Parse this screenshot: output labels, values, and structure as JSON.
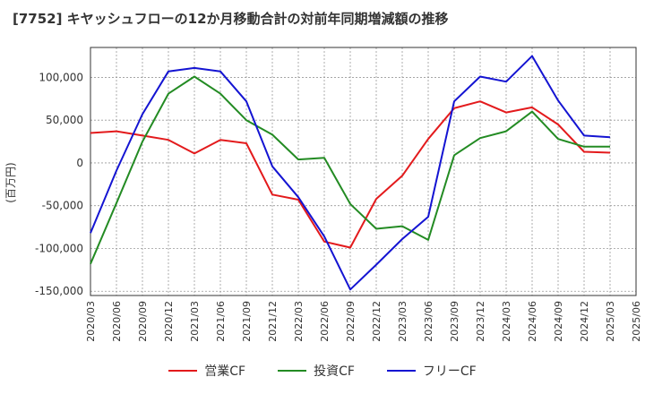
{
  "chart_data": {
    "type": "line",
    "title": "[7752]  キヤッシュフローの12か月移動合計の対前年同期増減額の推移",
    "ylabel": "(百万円)",
    "xlabel": "",
    "ylim": [
      -155000,
      135000
    ],
    "yticks": [
      100000,
      50000,
      0,
      -50000,
      -100000,
      -150000
    ],
    "ytick_labels": [
      "100,000",
      "50,000",
      "0",
      "-50,000",
      "-100,000",
      "-150,000"
    ],
    "x": [
      "2020/03",
      "2020/06",
      "2020/09",
      "2020/12",
      "2021/03",
      "2021/06",
      "2021/09",
      "2021/12",
      "2022/03",
      "2022/06",
      "2022/09",
      "2022/12",
      "2023/03",
      "2023/06",
      "2023/09",
      "2023/12",
      "2024/03",
      "2024/06",
      "2024/09",
      "2024/12",
      "2025/03",
      "2025/06"
    ],
    "grid": true,
    "legend_position": "bottom",
    "series": [
      {
        "name": "営業CF",
        "color": "#e31a1c",
        "values": [
          35000,
          37000,
          32000,
          27000,
          11000,
          27000,
          23000,
          -37000,
          -43000,
          -92000,
          -99000,
          -42000,
          -15000,
          28000,
          64000,
          72000,
          59000,
          65000,
          45000,
          13000,
          12000,
          null
        ]
      },
      {
        "name": "投資CF",
        "color": "#238b23",
        "values": [
          -118000,
          -47000,
          25000,
          81000,
          101000,
          81000,
          50000,
          33000,
          4000,
          6000,
          -48000,
          -77000,
          -74000,
          -90000,
          9000,
          29000,
          37000,
          60000,
          28000,
          19000,
          19000,
          null
        ]
      },
      {
        "name": "フリーCF",
        "color": "#1414d2",
        "values": [
          -82000,
          -9000,
          57000,
          107000,
          111000,
          107000,
          72000,
          -4000,
          -40000,
          -86000,
          -148000,
          -119000,
          -89000,
          -63000,
          72000,
          101000,
          95000,
          125000,
          73000,
          32000,
          30000,
          null
        ]
      }
    ]
  }
}
